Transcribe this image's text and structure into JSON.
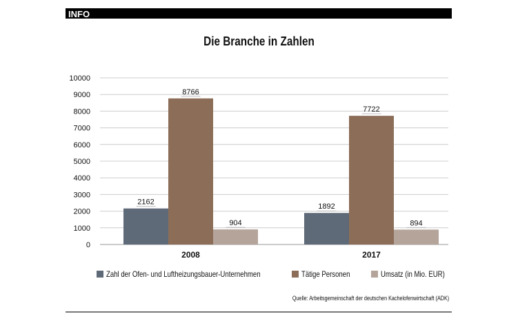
{
  "header": {
    "label": "INFO"
  },
  "chart_data": {
    "type": "bar",
    "title": "Die Branche in Zahlen",
    "categories": [
      "2008",
      "2017"
    ],
    "series": [
      {
        "name": "Zahl der Ofen- und Luftheizungsbauer-Unternehmen",
        "values": [
          2162,
          1892
        ],
        "color": "#5f6a78"
      },
      {
        "name": "Tätige Personen",
        "values": [
          8766,
          7722
        ],
        "color": "#8c6e58"
      },
      {
        "name": "Umsatz (in Mio. EUR)",
        "values": [
          904,
          894
        ],
        "color": "#b5a49a"
      }
    ],
    "ylim": [
      0,
      10000
    ],
    "yticks": [
      0,
      1000,
      2000,
      3000,
      4000,
      5000,
      6000,
      7000,
      8000,
      9000,
      10000
    ],
    "grid": true,
    "legend": "bottom"
  },
  "source": "Quelle: Arbeitsgemeinschaft der deutschen Kachelofenwirtschaft (ADK)"
}
